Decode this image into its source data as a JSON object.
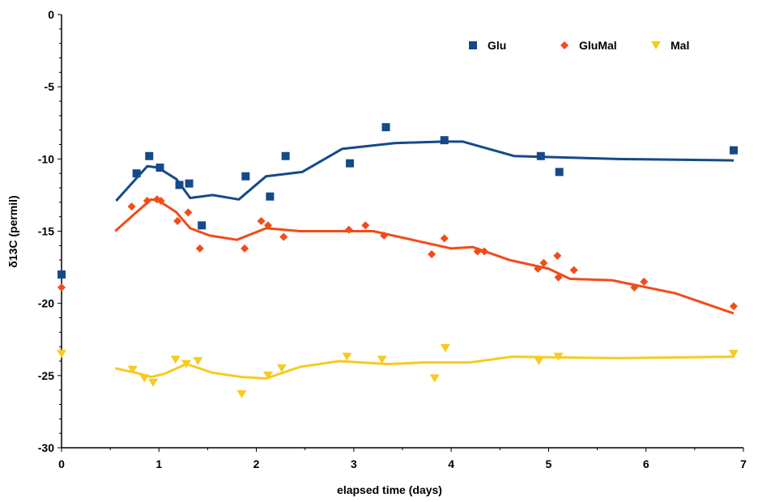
{
  "chart_data": {
    "type": "scatter",
    "xlabel": "elapsed time (days)",
    "ylabel": "δ13C (permil)",
    "xlim": [
      0,
      7
    ],
    "ylim": [
      -30,
      0
    ],
    "x_ticks": [
      0,
      1,
      2,
      3,
      4,
      5,
      6,
      7
    ],
    "y_ticks": [
      0,
      -5,
      -10,
      -15,
      -20,
      -25,
      -30
    ],
    "grid": false,
    "legend_position": "top-right",
    "series": [
      {
        "name": "Glu",
        "marker": "square",
        "color": "#154a8a",
        "points": [
          [
            0.0,
            -18.0
          ],
          [
            0.77,
            -11.0
          ],
          [
            0.9,
            -9.8
          ],
          [
            1.01,
            -10.6
          ],
          [
            1.21,
            -11.8
          ],
          [
            1.31,
            -11.7
          ],
          [
            1.44,
            -14.6
          ],
          [
            1.89,
            -11.2
          ],
          [
            2.14,
            -12.6
          ],
          [
            2.3,
            -9.8
          ],
          [
            2.96,
            -10.3
          ],
          [
            3.33,
            -7.8
          ],
          [
            3.93,
            -8.7
          ],
          [
            4.92,
            -9.8
          ],
          [
            5.11,
            -10.9
          ],
          [
            6.9,
            -9.4
          ]
        ],
        "fit": [
          [
            0.56,
            -12.9
          ],
          [
            0.88,
            -10.5
          ],
          [
            0.99,
            -10.6
          ],
          [
            1.18,
            -11.4
          ],
          [
            1.32,
            -12.7
          ],
          [
            1.55,
            -12.5
          ],
          [
            1.82,
            -12.8
          ],
          [
            2.1,
            -11.2
          ],
          [
            2.47,
            -10.9
          ],
          [
            2.88,
            -9.3
          ],
          [
            3.42,
            -8.9
          ],
          [
            3.92,
            -8.8
          ],
          [
            4.12,
            -8.8
          ],
          [
            4.65,
            -9.8
          ],
          [
            5.68,
            -10.0
          ],
          [
            6.9,
            -10.1
          ]
        ]
      },
      {
        "name": "GluMal",
        "marker": "diamond",
        "color": "#f24b1a",
        "points": [
          [
            0.0,
            -18.9
          ],
          [
            0.72,
            -13.3
          ],
          [
            0.88,
            -12.9
          ],
          [
            0.98,
            -12.8
          ],
          [
            1.02,
            -12.9
          ],
          [
            1.19,
            -14.3
          ],
          [
            1.3,
            -13.7
          ],
          [
            1.42,
            -16.2
          ],
          [
            1.88,
            -16.2
          ],
          [
            2.05,
            -14.3
          ],
          [
            2.12,
            -14.6
          ],
          [
            2.28,
            -15.4
          ],
          [
            2.95,
            -14.9
          ],
          [
            3.12,
            -14.6
          ],
          [
            3.31,
            -15.3
          ],
          [
            3.8,
            -16.6
          ],
          [
            3.93,
            -15.5
          ],
          [
            4.27,
            -16.4
          ],
          [
            4.34,
            -16.4
          ],
          [
            4.89,
            -17.6
          ],
          [
            4.95,
            -17.2
          ],
          [
            5.09,
            -16.7
          ],
          [
            5.1,
            -18.2
          ],
          [
            5.26,
            -17.7
          ],
          [
            5.88,
            -18.9
          ],
          [
            5.98,
            -18.5
          ],
          [
            6.9,
            -20.2
          ]
        ],
        "fit": [
          [
            0.55,
            -15.0
          ],
          [
            0.75,
            -13.8
          ],
          [
            0.92,
            -12.8
          ],
          [
            1.0,
            -12.9
          ],
          [
            1.18,
            -13.7
          ],
          [
            1.32,
            -14.8
          ],
          [
            1.52,
            -15.3
          ],
          [
            1.8,
            -15.6
          ],
          [
            2.1,
            -14.8
          ],
          [
            2.45,
            -15.0
          ],
          [
            2.82,
            -15.0
          ],
          [
            3.2,
            -15.0
          ],
          [
            3.6,
            -15.6
          ],
          [
            4.0,
            -16.2
          ],
          [
            4.22,
            -16.1
          ],
          [
            4.6,
            -17.0
          ],
          [
            5.0,
            -17.6
          ],
          [
            5.22,
            -18.3
          ],
          [
            5.65,
            -18.4
          ],
          [
            6.3,
            -19.3
          ],
          [
            6.9,
            -20.7
          ]
        ]
      },
      {
        "name": "Mal",
        "marker": "triangle-down",
        "color": "#f7cb1f",
        "points": [
          [
            0.0,
            -23.5
          ],
          [
            0.73,
            -24.6
          ],
          [
            0.85,
            -25.2
          ],
          [
            0.94,
            -25.5
          ],
          [
            1.17,
            -23.9
          ],
          [
            1.28,
            -24.2
          ],
          [
            1.4,
            -24.0
          ],
          [
            1.85,
            -26.3
          ],
          [
            2.12,
            -25.0
          ],
          [
            2.26,
            -24.5
          ],
          [
            2.93,
            -23.7
          ],
          [
            3.29,
            -23.9
          ],
          [
            3.83,
            -25.2
          ],
          [
            3.94,
            -23.1
          ],
          [
            4.9,
            -24.0
          ],
          [
            5.1,
            -23.7
          ],
          [
            6.9,
            -23.5
          ]
        ],
        "fit": [
          [
            0.55,
            -24.5
          ],
          [
            0.76,
            -24.8
          ],
          [
            0.92,
            -25.1
          ],
          [
            1.05,
            -24.9
          ],
          [
            1.28,
            -24.2
          ],
          [
            1.55,
            -24.8
          ],
          [
            1.85,
            -25.1
          ],
          [
            2.1,
            -25.2
          ],
          [
            2.45,
            -24.4
          ],
          [
            2.85,
            -24.0
          ],
          [
            3.35,
            -24.2
          ],
          [
            3.7,
            -24.1
          ],
          [
            4.18,
            -24.1
          ],
          [
            4.62,
            -23.7
          ],
          [
            5.7,
            -23.8
          ],
          [
            6.9,
            -23.7
          ]
        ]
      }
    ]
  }
}
